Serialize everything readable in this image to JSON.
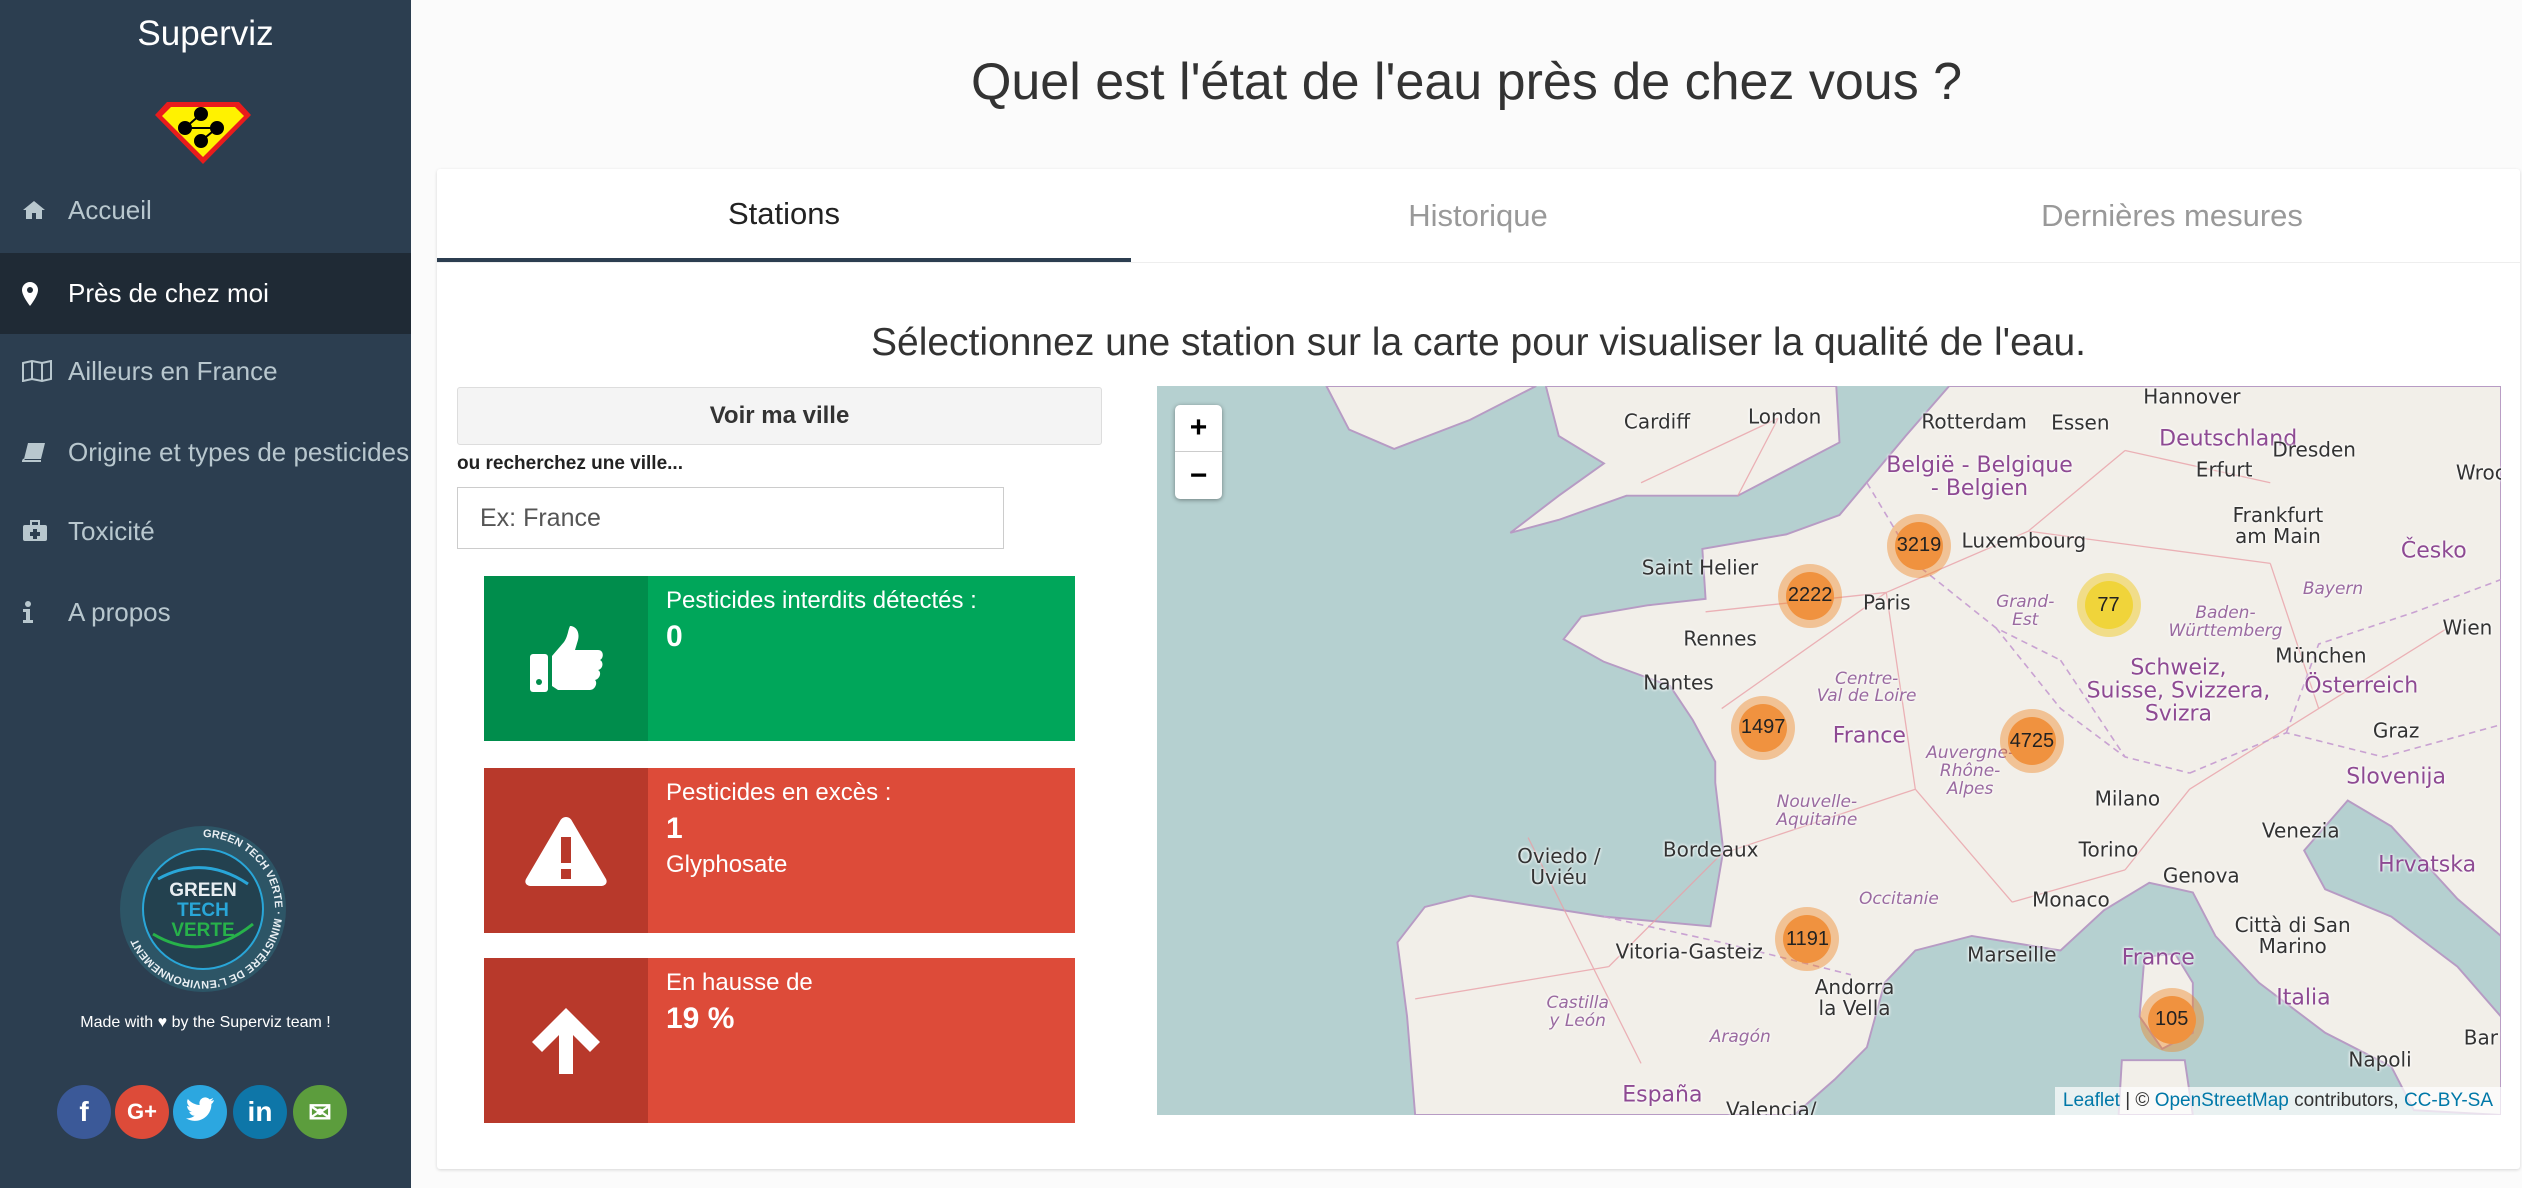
{
  "sidebar": {
    "brand": "Superviz",
    "items": [
      {
        "label": "Accueil",
        "icon": "home-icon"
      },
      {
        "label": "Près de chez moi",
        "icon": "map-marker-icon",
        "active": true
      },
      {
        "label": "Ailleurs en France",
        "icon": "map-icon"
      },
      {
        "label": "Origine et types de pesticides",
        "icon": "book-icon"
      },
      {
        "label": "Toxicité",
        "icon": "medkit-icon"
      },
      {
        "label": "A propos",
        "icon": "info-icon"
      }
    ],
    "badge_text": "GREEN TECH VERTE · MINISTÈRE DE L'ENVIRONNEMENT",
    "made_with": "Made with ♥ by the Superviz team !",
    "social": [
      {
        "name": "facebook",
        "glyph": "f",
        "color": "#3b5998"
      },
      {
        "name": "google-plus",
        "glyph": "G+",
        "color": "#dd4b39"
      },
      {
        "name": "twitter",
        "glyph": "t",
        "color": "#2ca7e0"
      },
      {
        "name": "linkedin",
        "glyph": "in",
        "color": "#0e76a8"
      },
      {
        "name": "email",
        "glyph": "✉",
        "color": "#5c9d3d"
      }
    ]
  },
  "page": {
    "title": "Quel est l'état de l'eau près de chez vous ?",
    "tabs": [
      {
        "label": "Stations",
        "active": true
      },
      {
        "label": "Historique"
      },
      {
        "label": "Dernières mesures"
      }
    ],
    "subtitle": "Sélectionnez une station sur la carte pour visualiser la qualité de l'eau.",
    "voir_button": "Voir ma ville",
    "search_label": "ou recherchez une ville...",
    "search_placeholder": "Ex: France",
    "search_value": ""
  },
  "cards": [
    {
      "title": "Pesticides interdits détectés :",
      "value": "0",
      "detail": "",
      "icon": "thumbs-up-icon",
      "color": "#00a65a",
      "icon_bg": "#008d4c"
    },
    {
      "title": "Pesticides en excès :",
      "value": "1",
      "detail": "Glyphosate",
      "icon": "warning-icon",
      "color": "#dd4b39",
      "icon_bg": "#b8392b"
    },
    {
      "title": "En hausse de",
      "value": "19 %",
      "detail": "",
      "icon": "arrow-up-icon",
      "color": "#dd4b39",
      "icon_bg": "#b8392b"
    }
  ],
  "map": {
    "zoom_in": "+",
    "zoom_out": "−",
    "clusters": [
      {
        "count": "3219",
        "level": "orange"
      },
      {
        "count": "2222",
        "level": "orange"
      },
      {
        "count": "77",
        "level": "yellow"
      },
      {
        "count": "1497",
        "level": "orange"
      },
      {
        "count": "4725",
        "level": "orange"
      },
      {
        "count": "1191",
        "level": "orange"
      },
      {
        "count": "105",
        "level": "orange"
      }
    ],
    "labels": [
      {
        "text": "Hannover",
        "kind": "city"
      },
      {
        "text": "Cardiff",
        "kind": "city"
      },
      {
        "text": "London",
        "kind": "city"
      },
      {
        "text": "Rotterdam",
        "kind": "city"
      },
      {
        "text": "Essen",
        "kind": "city"
      },
      {
        "text": "Deutschland",
        "kind": "country"
      },
      {
        "text": "Dresden",
        "kind": "city"
      },
      {
        "text": "Wroc",
        "kind": "city"
      },
      {
        "text": "Erfurt",
        "kind": "city"
      },
      {
        "text": "België - Belgique\n- Belgien",
        "kind": "country"
      },
      {
        "text": "Frankfurt\nam Main",
        "kind": "city"
      },
      {
        "text": "Luxembourg",
        "kind": "city"
      },
      {
        "text": "Česko",
        "kind": "country"
      },
      {
        "text": "Saint Helier",
        "kind": "city"
      },
      {
        "text": "Paris",
        "kind": "city"
      },
      {
        "text": "Grand-\nEst",
        "kind": "region"
      },
      {
        "text": "Bayern",
        "kind": "region"
      },
      {
        "text": "Baden-\nWürttemberg",
        "kind": "region"
      },
      {
        "text": "Wien",
        "kind": "city"
      },
      {
        "text": "Rennes",
        "kind": "city"
      },
      {
        "text": "München",
        "kind": "city"
      },
      {
        "text": "Schweiz,\nSuisse, Svizzera,\nSvizra",
        "kind": "country"
      },
      {
        "text": "Nantes",
        "kind": "city"
      },
      {
        "text": "Centre-\nVal de Loire",
        "kind": "region"
      },
      {
        "text": "Österreich",
        "kind": "country"
      },
      {
        "text": "France",
        "kind": "country"
      },
      {
        "text": "Graz",
        "kind": "city"
      },
      {
        "text": "Slovenija",
        "kind": "country"
      },
      {
        "text": "Auvergne-\nRhône-\nAlpes",
        "kind": "region"
      },
      {
        "text": "Nouvelle-\nAquitaine",
        "kind": "region"
      },
      {
        "text": "Milano",
        "kind": "city"
      },
      {
        "text": "Bordeaux",
        "kind": "city"
      },
      {
        "text": "Venezia",
        "kind": "city"
      },
      {
        "text": "Torino",
        "kind": "city"
      },
      {
        "text": "Hrvatska",
        "kind": "country"
      },
      {
        "text": "Genova",
        "kind": "city"
      },
      {
        "text": "Oviedo /\nUviéu",
        "kind": "city"
      },
      {
        "text": "Occitanie",
        "kind": "region"
      },
      {
        "text": "Monaco",
        "kind": "city"
      },
      {
        "text": "Città di San\nMarino",
        "kind": "city"
      },
      {
        "text": "Vitoria-Gasteiz",
        "kind": "city"
      },
      {
        "text": "Marseille",
        "kind": "city"
      },
      {
        "text": "Andorra\nla Vella",
        "kind": "city"
      },
      {
        "text": "Italia",
        "kind": "country"
      },
      {
        "text": "France",
        "kind": "country"
      },
      {
        "text": "Castilla\ny León",
        "kind": "region"
      },
      {
        "text": "Aragón",
        "kind": "region"
      },
      {
        "text": "España",
        "kind": "country"
      },
      {
        "text": "Valencia/",
        "kind": "city"
      },
      {
        "text": "Napoli",
        "kind": "city"
      },
      {
        "text": "Bar",
        "kind": "city"
      }
    ],
    "attribution": {
      "leaflet": "Leaflet",
      "sep": " | © ",
      "osm": "OpenStreetMap",
      "contributors": " contributors, ",
      "license": "CC-BY-SA"
    },
    "colors": {
      "sea": "#b5d0d0",
      "land": "#f2efe9",
      "cluster_orange": "#f0923f",
      "cluster_yellow": "#f0d43a"
    }
  }
}
